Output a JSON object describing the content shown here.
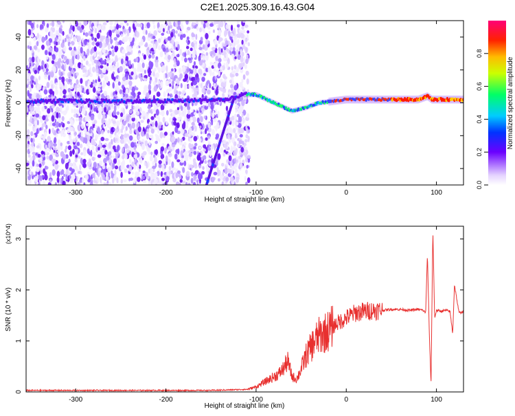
{
  "title": "C2E1.2025.309.16.43.G04",
  "colors": {
    "snr_line": "#e8302f",
    "track": "#6b14e6",
    "background": "#ffffff",
    "axis": "#000000"
  },
  "chart_data": [
    {
      "type": "heatmap",
      "title": "C2E1.2025.309.16.43.G04",
      "xlabel": "Height of straight line (km)",
      "ylabel": "Frequency (Hz)",
      "xlim": [
        -355,
        130
      ],
      "ylim": [
        -50,
        50
      ],
      "x_ticks": [
        -300,
        -200,
        -100,
        0,
        100
      ],
      "y_ticks": [
        -40,
        -20,
        0,
        20,
        40
      ],
      "colorbar": {
        "label": "Normalized spectral amplitude",
        "range": [
          0,
          1
        ],
        "ticks": [
          "0.0",
          "0.2",
          "0.4",
          "0.6",
          "0.8"
        ]
      },
      "tone_track": {
        "x": [
          -355,
          -300,
          -200,
          -130,
          -115,
          -100,
          -80,
          -60,
          -45,
          -30,
          -15,
          0,
          20,
          40,
          60,
          80,
          90,
          95,
          110,
          130
        ],
        "y": [
          1,
          1,
          1,
          2,
          5,
          5,
          0,
          -5,
          -3,
          0,
          1,
          2,
          2,
          2,
          2,
          2,
          4,
          2,
          2,
          2
        ]
      },
      "diagonal_streak": {
        "x": [
          -155,
          -125
        ],
        "y": [
          -50,
          2
        ]
      }
    },
    {
      "type": "line",
      "xlabel": "Height of straight line (km)",
      "ylabel": "SNR (10 * v/v)",
      "y_multiplier": "(x10^4)",
      "xlim": [
        -355,
        130
      ],
      "ylim": [
        0,
        3.25
      ],
      "x_ticks": [
        -300,
        -200,
        -100,
        0,
        100
      ],
      "y_ticks": [
        0,
        1,
        2,
        3
      ],
      "series": [
        {
          "x": [
            -355,
            -300,
            -250,
            -200,
            -150,
            -110,
            -100,
            -90,
            -80,
            -75,
            -70,
            -65,
            -60,
            -55,
            -50,
            -45,
            -40,
            -35,
            -30,
            -25,
            -20,
            -15,
            -10,
            -5,
            0,
            5,
            10,
            20,
            30,
            40,
            50,
            60,
            70,
            80,
            85,
            88,
            90,
            92,
            94,
            96,
            98,
            100,
            105,
            110,
            115,
            118,
            120,
            125,
            130
          ],
          "y": [
            0.03,
            0.03,
            0.03,
            0.03,
            0.03,
            0.05,
            0.1,
            0.2,
            0.3,
            0.35,
            0.45,
            0.6,
            0.3,
            0.25,
            0.45,
            0.7,
            0.85,
            1.0,
            1.1,
            1.15,
            1.2,
            1.28,
            1.35,
            1.4,
            1.45,
            1.5,
            1.55,
            1.58,
            1.6,
            1.6,
            1.62,
            1.62,
            1.6,
            1.62,
            1.6,
            1.55,
            2.7,
            1.2,
            0.15,
            3.2,
            1.45,
            1.6,
            1.58,
            1.6,
            1.58,
            1.15,
            2.1,
            1.55,
            1.58
          ]
        }
      ]
    }
  ]
}
